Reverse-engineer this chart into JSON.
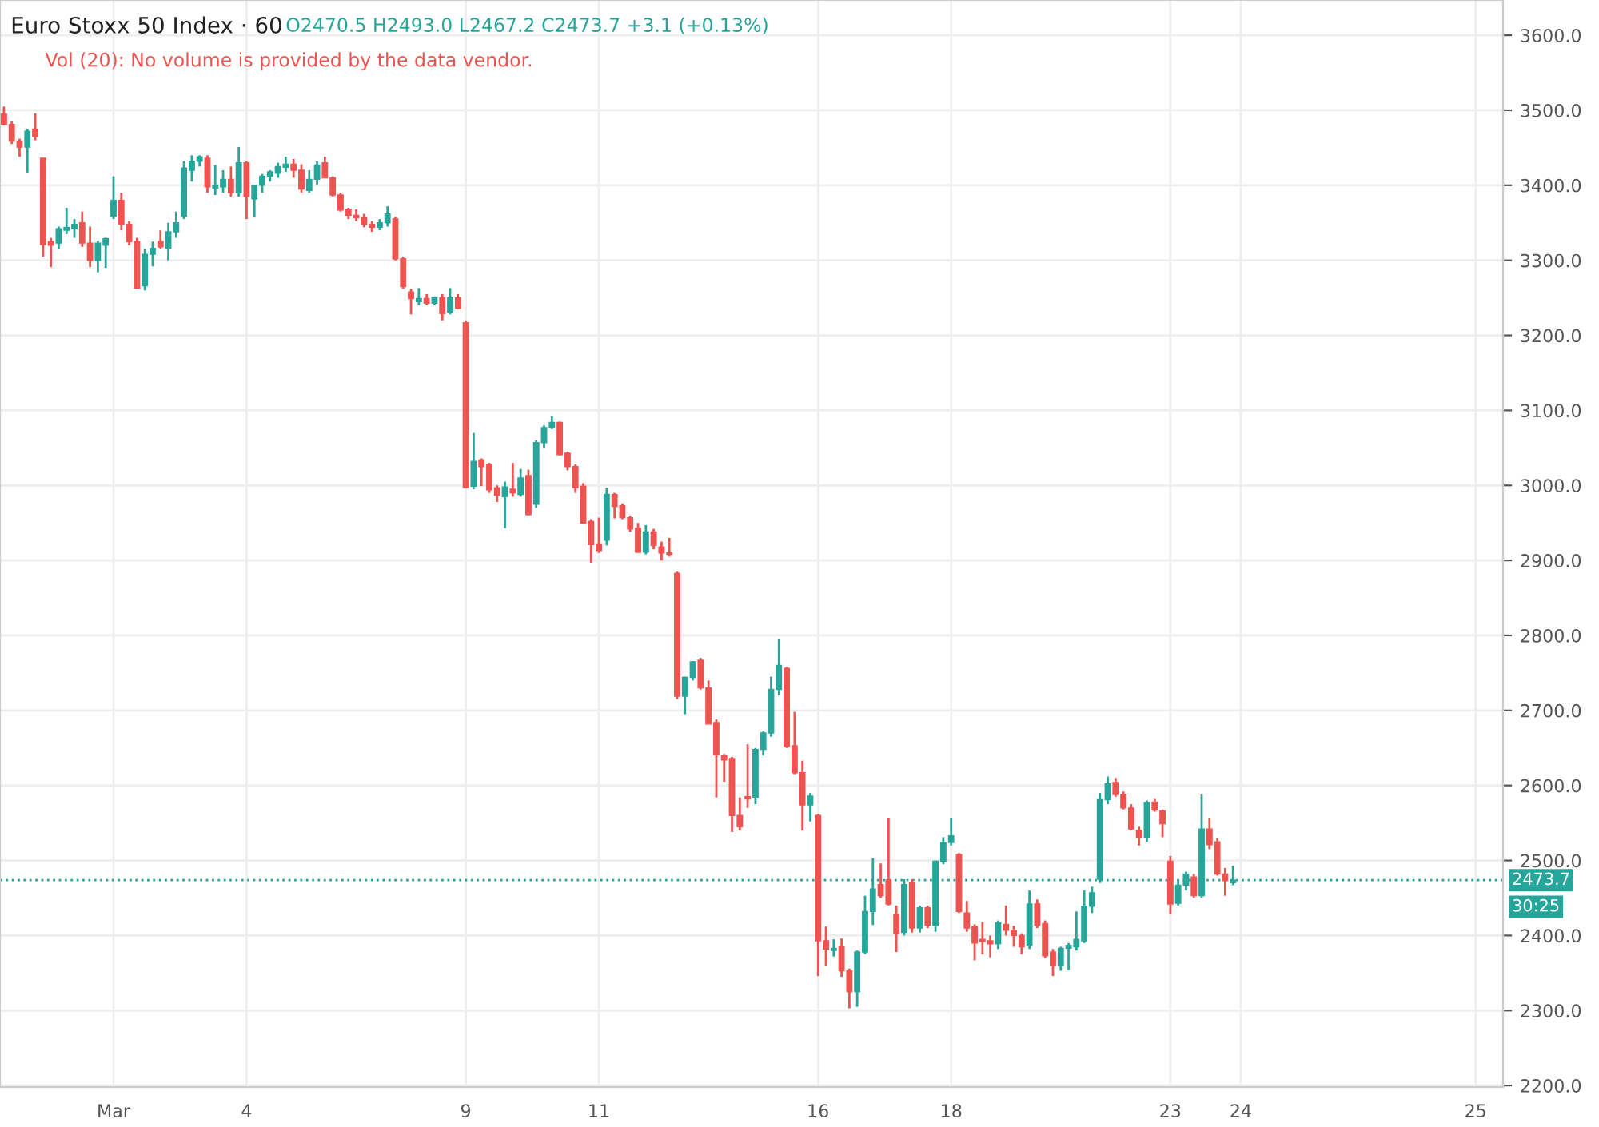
{
  "chart_data": {
    "type": "candlestick",
    "title": "Euro Stoxx 50 Index · 60",
    "annotations": [
      "O2470.5 H2493.0 L2467.2 C2473.7 +3.1 (+0.13%)",
      "Vol (20): No volume is provided by the data vendor.",
      "30:25"
    ],
    "colors": [
      "#ef5350",
      "#ef5350",
      "#ef5350",
      "#26a69a",
      "#ef5350",
      "#ef5350",
      "#ef5350",
      "#26a69a",
      "#26a69a",
      "#26a69a",
      "#ef5350",
      "#ef5350",
      "#26a69a",
      "#26a69a",
      "#26a69a",
      "#ef5350",
      "#ef5350",
      "#ef5350",
      "#26a69a",
      "#26a69a",
      "#ef5350",
      "#26a69a",
      "#26a69a",
      "#26a69a",
      "#26a69a",
      "#26a69a",
      "#ef5350",
      "#26a69a",
      "#26a69a",
      "#ef5350",
      "#26a69a",
      "#ef5350",
      "#26a69a",
      "#26a69a",
      "#26a69a",
      "#26a69a",
      "#26a69a",
      "#ef5350",
      "#ef5350",
      "#26a69a",
      "#26a69a",
      "#ef5350",
      "#ef5350",
      "#ef5350",
      "#ef5350",
      "#ef5350",
      "#ef5350",
      "#ef5350",
      "#26a69a",
      "#26a69a",
      "#ef5350",
      "#ef5350",
      "#ef5350",
      "#26a69a",
      "#ef5350",
      "#26a69a",
      "#ef5350",
      "#26a69a",
      "#ef5350",
      "#ef5350",
      "#26a69a",
      "#ef5350",
      "#ef5350",
      "#ef5350",
      "#26a69a",
      "#ef5350",
      "#26a69a",
      "#ef5350",
      "#26a69a",
      "#26a69a",
      "#26a69a",
      "#ef5350",
      "#ef5350",
      "#ef5350",
      "#ef5350",
      "#ef5350",
      "#ef5350",
      "#26a69a",
      "#ef5350",
      "#ef5350",
      "#ef5350",
      "#ef5350",
      "#26a69a",
      "#ef5350",
      "#ef5350",
      "#ef5350",
      "#ef5350",
      "#26a69a",
      "#26a69a",
      "#ef5350",
      "#ef5350",
      "#ef5350",
      "#ef5350",
      "#ef5350",
      "#ef5350",
      "#ef5350",
      "#26a69a",
      "#26a69a",
      "#26a69a",
      "#26a69a",
      "#ef5350",
      "#ef5350",
      "#ef5350",
      "#26a69a",
      "#ef5350",
      "#ef5350",
      "#26a69a",
      "#ef5350",
      "#ef5350",
      "#26a69a",
      "#26a69a",
      "#26a69a",
      "#ef5350",
      "#ef5350",
      "#ef5350",
      "#26a69a",
      "#ef5350",
      "#26a69a",
      "#ef5350",
      "#26a69a",
      "#26a69a",
      "#26a69a",
      "#ef5350",
      "#ef5350",
      "#ef5350",
      "#ef5350",
      "#ef5350",
      "#26a69a",
      "#ef5350",
      "#ef5350",
      "#ef5350",
      "#26a69a",
      "#ef5350",
      "#ef5350",
      "#ef5350",
      "#26a69a",
      "#26a69a",
      "#26a69a",
      "#26a69a",
      "#26a69a",
      "#26a69a",
      "#26a69a",
      "#ef5350",
      "#ef5350",
      "#ef5350",
      "#ef5350",
      "#26a69a",
      "#ef5350",
      "#ef5350",
      "#ef5350",
      "#26a69a",
      "#26a69a",
      "#ef5350",
      "#26a69a",
      "#ef5350",
      "#ef5350",
      "#ef5350",
      "#26a69a",
      null,
      null,
      null,
      null,
      null,
      null,
      null,
      null,
      null,
      null,
      null,
      null,
      null,
      null,
      null,
      null,
      null,
      null,
      null,
      null,
      null,
      null,
      null,
      null,
      null,
      null,
      null,
      null,
      null,
      null,
      null,
      null,
      null,
      null
    ],
    "categories": [
      null,
      null,
      null,
      null,
      null,
      null,
      null,
      null,
      null,
      null,
      null,
      null,
      null,
      null,
      "Mar",
      null,
      null,
      null,
      null,
      null,
      null,
      null,
      null,
      null,
      null,
      null,
      null,
      null,
      null,
      null,
      null,
      "4",
      null,
      null,
      null,
      null,
      null,
      null,
      null,
      null,
      null,
      null,
      null,
      null,
      null,
      null,
      null,
      null,
      null,
      null,
      null,
      null,
      null,
      null,
      null,
      null,
      null,
      null,
      null,
      "9",
      null,
      null,
      null,
      null,
      null,
      null,
      null,
      null,
      null,
      null,
      null,
      null,
      null,
      null,
      null,
      null,
      "11",
      null,
      null,
      null,
      null,
      null,
      null,
      null,
      null,
      null,
      null,
      null,
      null,
      null,
      null,
      null,
      null,
      null,
      null,
      null,
      null,
      null,
      null,
      null,
      null,
      null,
      null,
      null,
      "16",
      null,
      null,
      null,
      null,
      null,
      null,
      null,
      null,
      null,
      null,
      null,
      null,
      null,
      null,
      null,
      null,
      "18",
      null,
      null,
      null,
      null,
      null,
      null,
      null,
      null,
      null,
      null,
      null,
      null,
      null,
      null,
      null,
      null,
      null,
      null,
      null,
      null,
      null,
      null,
      null,
      null,
      null,
      null,
      null,
      "23",
      null,
      null,
      null,
      null,
      null,
      null,
      null,
      null,
      "24",
      null,
      null,
      null,
      null,
      null,
      null,
      null,
      null,
      null,
      null,
      null,
      null,
      null,
      null,
      null,
      null,
      null,
      null,
      null,
      null,
      null,
      null,
      null,
      null,
      null,
      null,
      null,
      null,
      null,
      "25",
      null,
      null,
      null
    ],
    "ohlc": [
      [
        3495,
        3505,
        3480,
        3481
      ],
      [
        3481,
        3485,
        3455,
        3459
      ],
      [
        3459,
        3462,
        3438,
        3451
      ],
      [
        3451,
        3475,
        3417,
        3472
      ],
      [
        3475,
        3496,
        3460,
        3465
      ],
      [
        3436,
        3436,
        3305,
        3321
      ],
      [
        3325,
        3330,
        3291,
        3320
      ],
      [
        3323,
        3345,
        3315,
        3342
      ],
      [
        3340,
        3370,
        3335,
        3344
      ],
      [
        3342,
        3355,
        3330,
        3348
      ],
      [
        3350,
        3365,
        3318,
        3323
      ],
      [
        3323,
        3345,
        3291,
        3300
      ],
      [
        3300,
        3326,
        3284,
        3323
      ],
      [
        3320,
        3330,
        3290,
        3329
      ],
      [
        3359,
        3412,
        3355,
        3380
      ],
      [
        3380,
        3390,
        3340,
        3348
      ],
      [
        3348,
        3352,
        3320,
        3325
      ],
      [
        3325,
        3330,
        3263,
        3263
      ],
      [
        3266,
        3315,
        3260,
        3308
      ],
      [
        3308,
        3325,
        3292,
        3316
      ],
      [
        3325,
        3340,
        3315,
        3318
      ],
      [
        3316,
        3350,
        3300,
        3338
      ],
      [
        3338,
        3365,
        3330,
        3350
      ],
      [
        3359,
        3432,
        3355,
        3423
      ],
      [
        3420,
        3440,
        3405,
        3432
      ],
      [
        3432,
        3440,
        3425,
        3438
      ],
      [
        3436,
        3440,
        3390,
        3398
      ],
      [
        3396,
        3427,
        3387,
        3400
      ],
      [
        3398,
        3420,
        3390,
        3408
      ],
      [
        3408,
        3425,
        3385,
        3390
      ],
      [
        3390,
        3451,
        3385,
        3430
      ],
      [
        3430,
        3432,
        3355,
        3385
      ],
      [
        3382,
        3400,
        3357,
        3400
      ],
      [
        3400,
        3415,
        3390,
        3412
      ],
      [
        3412,
        3420,
        3405,
        3418
      ],
      [
        3416,
        3430,
        3410,
        3425
      ],
      [
        3424,
        3438,
        3418,
        3428
      ],
      [
        3428,
        3435,
        3410,
        3420
      ],
      [
        3420,
        3428,
        3390,
        3395
      ],
      [
        3393,
        3420,
        3390,
        3408
      ],
      [
        3408,
        3432,
        3400,
        3427
      ],
      [
        3430,
        3438,
        3410,
        3410
      ],
      [
        3410,
        3412,
        3385,
        3387
      ],
      [
        3387,
        3390,
        3365,
        3367
      ],
      [
        3367,
        3370,
        3355,
        3360
      ],
      [
        3360,
        3368,
        3352,
        3357
      ],
      [
        3357,
        3362,
        3344,
        3348
      ],
      [
        3348,
        3352,
        3338,
        3344
      ],
      [
        3344,
        3355,
        3340,
        3350
      ],
      [
        3350,
        3372,
        3345,
        3362
      ],
      [
        3355,
        3358,
        3300,
        3302
      ],
      [
        3302,
        3305,
        3262,
        3265
      ],
      [
        3258,
        3262,
        3228,
        3249
      ],
      [
        3245,
        3263,
        3240,
        3249
      ],
      [
        3249,
        3255,
        3240,
        3243
      ],
      [
        3243,
        3252,
        3240,
        3251
      ],
      [
        3250,
        3255,
        3220,
        3229
      ],
      [
        3231,
        3263,
        3228,
        3250
      ],
      [
        3250,
        3255,
        3235,
        3236
      ],
      [
        3217,
        3220,
        2996,
        2997
      ],
      [
        2999,
        3070,
        2995,
        3032
      ],
      [
        3034,
        3036,
        2999,
        3025
      ],
      [
        3028,
        3030,
        2990,
        2994
      ],
      [
        2997,
        3000,
        2978,
        2987
      ],
      [
        2985,
        3005,
        2943,
        2998
      ],
      [
        2995,
        3030,
        2985,
        2990
      ],
      [
        2988,
        3022,
        2985,
        3010
      ],
      [
        3013,
        3021,
        2960,
        2961
      ],
      [
        2975,
        3060,
        2970,
        3057
      ],
      [
        3057,
        3080,
        3050,
        3077
      ],
      [
        3077,
        3092,
        3075,
        3084
      ],
      [
        3084,
        3085,
        3040,
        3041
      ],
      [
        3043,
        3045,
        3020,
        3025
      ],
      [
        3025,
        3028,
        2990,
        2997
      ],
      [
        2999,
        3003,
        2950,
        2950
      ],
      [
        2952,
        2955,
        2897,
        2921
      ],
      [
        2922,
        2957,
        2910,
        2913
      ],
      [
        2927,
        2997,
        2920,
        2988
      ],
      [
        2988,
        2990,
        2956,
        2972
      ],
      [
        2973,
        2976,
        2955,
        2957
      ],
      [
        2957,
        2960,
        2938,
        2942
      ],
      [
        2943,
        2950,
        2910,
        2911
      ],
      [
        2911,
        2947,
        2908,
        2938
      ],
      [
        2938,
        2942,
        2915,
        2920
      ],
      [
        2918,
        2925,
        2900,
        2910
      ],
      [
        2910,
        2930,
        2905,
        2908
      ],
      [
        2883,
        2885,
        2715,
        2719
      ],
      [
        2719,
        2745,
        2695,
        2744
      ],
      [
        2744,
        2766,
        2740,
        2765
      ],
      [
        2767,
        2770,
        2728,
        2730
      ],
      [
        2730,
        2740,
        2682,
        2682
      ],
      [
        2684,
        2688,
        2584,
        2641
      ],
      [
        2640,
        2642,
        2605,
        2634
      ],
      [
        2636,
        2638,
        2538,
        2560
      ],
      [
        2560,
        2584,
        2540,
        2545
      ],
      [
        2585,
        2655,
        2570,
        2582
      ],
      [
        2584,
        2650,
        2575,
        2648
      ],
      [
        2648,
        2672,
        2640,
        2670
      ],
      [
        2670,
        2745,
        2665,
        2728
      ],
      [
        2728,
        2795,
        2720,
        2760
      ],
      [
        2756,
        2758,
        2650,
        2652
      ],
      [
        2653,
        2698,
        2615,
        2617
      ],
      [
        2617,
        2633,
        2540,
        2574
      ],
      [
        2574,
        2590,
        2552,
        2586
      ],
      [
        2560,
        2562,
        2346,
        2393
      ],
      [
        2393,
        2412,
        2360,
        2382
      ],
      [
        2380,
        2395,
        2372,
        2383
      ],
      [
        2385,
        2396,
        2345,
        2353
      ],
      [
        2353,
        2356,
        2303,
        2325
      ],
      [
        2325,
        2380,
        2305,
        2378
      ],
      [
        2378,
        2453,
        2375,
        2432
      ],
      [
        2432,
        2503,
        2414,
        2462
      ],
      [
        2468,
        2496,
        2450,
        2453
      ],
      [
        2474,
        2556,
        2440,
        2442
      ],
      [
        2428,
        2440,
        2378,
        2403
      ],
      [
        2404,
        2475,
        2400,
        2468
      ],
      [
        2470,
        2475,
        2404,
        2410
      ],
      [
        2410,
        2440,
        2404,
        2437
      ],
      [
        2437,
        2440,
        2410,
        2414
      ],
      [
        2414,
        2500,
        2405,
        2499
      ],
      [
        2499,
        2531,
        2495,
        2524
      ],
      [
        2524,
        2556,
        2520,
        2533
      ],
      [
        2508,
        2510,
        2430,
        2432
      ],
      [
        2430,
        2446,
        2405,
        2410
      ],
      [
        2412,
        2415,
        2367,
        2390
      ],
      [
        2395,
        2418,
        2375,
        2392
      ],
      [
        2393,
        2400,
        2371,
        2389
      ],
      [
        2389,
        2420,
        2382,
        2417
      ],
      [
        2415,
        2440,
        2400,
        2407
      ],
      [
        2407,
        2413,
        2385,
        2400
      ],
      [
        2400,
        2403,
        2375,
        2385
      ],
      [
        2387,
        2460,
        2382,
        2442
      ],
      [
        2442,
        2448,
        2410,
        2414
      ],
      [
        2416,
        2420,
        2370,
        2373
      ],
      [
        2378,
        2382,
        2346,
        2360
      ],
      [
        2360,
        2385,
        2353,
        2383
      ],
      [
        2383,
        2390,
        2354,
        2387
      ],
      [
        2385,
        2432,
        2380,
        2395
      ],
      [
        2393,
        2460,
        2390,
        2439
      ],
      [
        2439,
        2465,
        2430,
        2457
      ],
      [
        2475,
        2590,
        2470,
        2581
      ],
      [
        2581,
        2612,
        2575,
        2602
      ],
      [
        2604,
        2610,
        2585,
        2588
      ],
      [
        2588,
        2592,
        2568,
        2570
      ],
      [
        2570,
        2575,
        2540,
        2542
      ],
      [
        2540,
        2545,
        2520,
        2531
      ],
      [
        2531,
        2580,
        2525,
        2577
      ],
      [
        2578,
        2582,
        2565,
        2567
      ],
      [
        2566,
        2568,
        2531,
        2549
      ],
      [
        2499,
        2506,
        2428,
        2442
      ],
      [
        2443,
        2475,
        2440,
        2467
      ],
      [
        2467,
        2485,
        2460,
        2482
      ],
      [
        2478,
        2482,
        2450,
        2453
      ],
      [
        2453,
        2588,
        2450,
        2542
      ],
      [
        2542,
        2556,
        2515,
        2521
      ],
      [
        2525,
        2530,
        2480,
        2482
      ],
      [
        2482,
        2490,
        2453,
        2473
      ],
      [
        2470.5,
        2493.0,
        2467.2,
        2473.7
      ],
      null,
      null,
      null,
      null,
      null,
      null,
      null,
      null,
      null,
      null,
      null,
      null,
      null,
      null,
      null,
      null,
      null,
      null,
      null,
      null,
      null,
      null,
      null,
      null,
      null,
      null,
      null,
      null,
      null,
      null,
      null,
      null,
      null,
      null
    ],
    "ylim": [
      2198,
      3647
    ],
    "yticks": [
      {
        "value": 2200,
        "label": "2200.0"
      },
      {
        "value": 2300,
        "label": "2300.0"
      },
      {
        "value": 2400,
        "label": "2400.0"
      },
      {
        "value": 2500,
        "label": "2500.0"
      },
      {
        "value": 2600,
        "label": "2600.0"
      },
      {
        "value": 2700,
        "label": "2700.0"
      },
      {
        "value": 2800,
        "label": "2800.0"
      },
      {
        "value": 2900,
        "label": "2900.0"
      },
      {
        "value": 3000,
        "label": "3000.0"
      },
      {
        "value": 3100,
        "label": "3100.0"
      },
      {
        "value": 3200,
        "label": "3200.0"
      },
      {
        "value": 3300,
        "label": "3300.0"
      },
      {
        "value": 3400,
        "label": "3400.0"
      },
      {
        "value": 3500,
        "label": "3500.0"
      },
      {
        "value": 3600,
        "label": "3600.0"
      }
    ],
    "ref_lines": [
      {
        "axis": "y",
        "value": 2473.7,
        "label": "2473.7",
        "color": "#26a69a",
        "line_style": "dotted"
      }
    ],
    "grid": true
  }
}
